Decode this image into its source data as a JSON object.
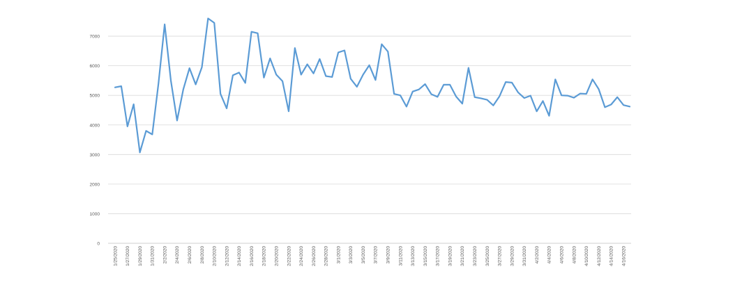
{
  "chart_data": {
    "type": "line",
    "categories": [
      "1/25/2020",
      null,
      "1/27/2020",
      null,
      "1/29/2020",
      null,
      "1/31/2020",
      null,
      "2/2/2020",
      null,
      "2/4/2020",
      null,
      "2/6/2020",
      null,
      "2/8/2020",
      null,
      "2/10/2020",
      null,
      "2/12/2020",
      null,
      "2/14/2020",
      null,
      "2/16/2020",
      null,
      "2/18/2020",
      null,
      "2/20/2020",
      null,
      "2/22/2020",
      null,
      "2/24/2020",
      null,
      "2/26/2020",
      null,
      "2/28/2020",
      null,
      "3/1/2020",
      null,
      "3/3/2020",
      null,
      "3/5/2020",
      null,
      "3/7/2020",
      null,
      "3/9/2020",
      null,
      "3/11/2020",
      null,
      "3/13/2020",
      null,
      "3/15/2020",
      null,
      "3/17/2020",
      null,
      "3/19/2020",
      null,
      "3/21/2020",
      null,
      "3/23/2020",
      null,
      "3/25/2020",
      null,
      "3/27/2020",
      null,
      "3/29/2020",
      null,
      "3/31/2020",
      null,
      "4/2/2020",
      null,
      "4/4/2020",
      null,
      "4/6/2020",
      null,
      "4/8/2020",
      null,
      "4/10/2020",
      null,
      "4/12/2020",
      null,
      "4/14/2020",
      null,
      "4/16/2020",
      null
    ],
    "values": [
      5270,
      5310,
      3950,
      4700,
      3070,
      3800,
      3680,
      5400,
      7400,
      5500,
      4150,
      5200,
      5920,
      5370,
      5950,
      7600,
      7450,
      5050,
      4560,
      5680,
      5770,
      5420,
      7150,
      7100,
      5600,
      6250,
      5700,
      5480,
      4460,
      6600,
      5700,
      6050,
      5740,
      6230,
      5650,
      5620,
      6450,
      6520,
      5560,
      5290,
      5700,
      6020,
      5520,
      6730,
      6480,
      5050,
      5000,
      4620,
      5130,
      5200,
      5380,
      5040,
      4950,
      5360,
      5360,
      4960,
      4720,
      5930,
      4940,
      4900,
      4850,
      4660,
      4970,
      5450,
      5430,
      5100,
      4910,
      4990,
      4460,
      4810,
      4310,
      5540,
      5000,
      4990,
      4920,
      5060,
      5050,
      5540,
      5210,
      4600,
      4690,
      4940,
      4670,
      4620
    ],
    "color": "#5b9bd5",
    "ylim": [
      0,
      8000
    ],
    "yticks": [
      0,
      1000,
      2000,
      3000,
      4000,
      5000,
      6000,
      7000
    ],
    "grid": true
  }
}
